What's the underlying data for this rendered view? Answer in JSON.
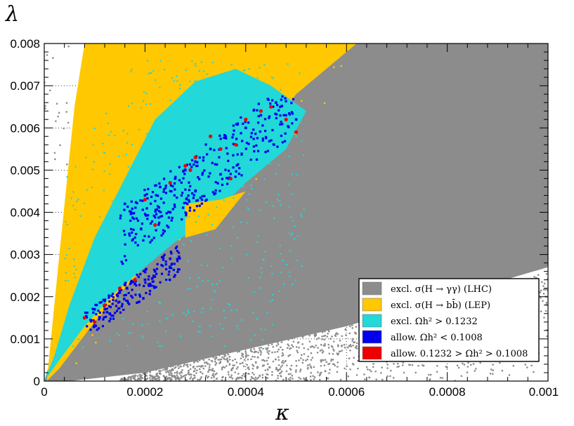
{
  "chart_data": {
    "type": "scatter",
    "xlabel": "κ",
    "ylabel": "λ",
    "xlim": [
      0,
      0.001
    ],
    "ylim": [
      0,
      0.008
    ],
    "x_ticks": [
      "0",
      "0.0002",
      "0.0004",
      "0.0006",
      "0.0008",
      "0.001"
    ],
    "y_ticks": [
      "0",
      "0.001",
      "0.002",
      "0.003",
      "0.004",
      "0.005",
      "0.006",
      "0.007",
      "0.008"
    ],
    "grid": "dotted, partially hidden behind points",
    "legend_position": "bottom-right",
    "series": [
      {
        "name": "excl. σ(H → γγ) (LHC)",
        "color": "#8c8c8c",
        "region": "dense band between λ ≈ 2.4·κ + 0.0003 (lower bound) and the upper-left edge λ ≈ 0.008, spanning κ 0–0.001; sparse lower tail below, from λ≈0 at κ≈0.0002 to λ≈0.0043 at κ=0.001"
      },
      {
        "name": "excl. σ(H → bb̄) (LEP)",
        "color": "#ffc800",
        "region": "wedge from origin to λ=0.008 for κ ≈ 0.00003–0.00062, upper edge at λ=0.008"
      },
      {
        "name": "excl. Ωh² > 0.1232",
        "color": "#22d8d8",
        "region": "inner wedge from origin, reaching λ≈0.0074 at κ≈0.0003–0.0004"
      },
      {
        "name": "allow. Ωh² < 0.1008",
        "color": "#0000ee",
        "points": [
          [
            8e-05,
            0.0015
          ],
          [
            0.0001,
            0.0017
          ],
          [
            0.00012,
            0.0019
          ],
          [
            0.00015,
            0.0021
          ],
          [
            0.00018,
            0.0023
          ],
          [
            0.0002,
            0.0024
          ],
          [
            0.00022,
            0.0026
          ],
          [
            0.00025,
            0.0029
          ],
          [
            0.0001,
            0.0014
          ],
          [
            0.00013,
            0.0016
          ],
          [
            0.00016,
            0.0042
          ],
          [
            0.0002,
            0.0044
          ],
          [
            0.00023,
            0.0046
          ],
          [
            0.00026,
            0.0048
          ],
          [
            0.00028,
            0.005
          ],
          [
            0.0003,
            0.0052
          ],
          [
            0.00033,
            0.0055
          ],
          [
            0.00036,
            0.0058
          ],
          [
            0.0004,
            0.006
          ],
          [
            0.00043,
            0.0063
          ],
          [
            0.00046,
            0.0066
          ],
          [
            0.0005,
            0.0062
          ],
          [
            0.00035,
            0.0049
          ],
          [
            0.0003,
            0.0045
          ],
          [
            0.00025,
            0.004
          ]
        ]
      },
      {
        "name": "allow. 0.1232 > Ωh² > 0.1008",
        "color": "#ee0000",
        "points": [
          [
            8e-05,
            0.0015
          ],
          [
            0.0001,
            0.0014
          ],
          [
            0.00012,
            0.0018
          ],
          [
            0.00015,
            0.0022
          ],
          [
            0.00018,
            0.0024
          ],
          [
            0.0002,
            0.0043
          ],
          [
            0.00022,
            0.0037
          ],
          [
            0.00025,
            0.0047
          ],
          [
            0.00028,
            0.0051
          ],
          [
            0.0003,
            0.0053
          ],
          [
            0.00033,
            0.0058
          ],
          [
            0.00035,
            0.0055
          ],
          [
            0.00038,
            0.0056
          ],
          [
            0.0004,
            0.0062
          ],
          [
            0.00043,
            0.0064
          ],
          [
            0.00045,
            0.0065
          ],
          [
            0.00048,
            0.0062
          ],
          [
            0.0005,
            0.0059
          ],
          [
            0.00029,
            0.005
          ],
          [
            0.00037,
            0.0048
          ]
        ]
      }
    ]
  },
  "legend": {
    "items": [
      {
        "label": "excl. σ(H → γγ) (LHC)",
        "color": "#8c8c8c"
      },
      {
        "label": "excl. σ(H → bb̄) (LEP)",
        "color": "#ffc800"
      },
      {
        "label": "excl. Ωh² > 0.1232",
        "color": "#22d8d8"
      },
      {
        "label": "allow. Ωh² < 0.1008",
        "color": "#0000ee"
      },
      {
        "label": "allow. 0.1232 > Ωh² > 0.1008",
        "color": "#ee0000"
      }
    ]
  }
}
